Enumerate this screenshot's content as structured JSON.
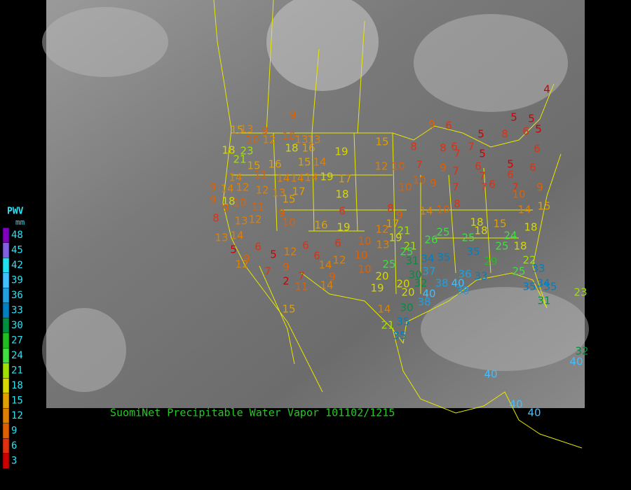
{
  "title": "SuomiNet Precipitable Water Vapor 101102/1215",
  "legend": {
    "title": "PWV",
    "unit": "mm",
    "levels": [
      {
        "value": 48,
        "color": "#8000c0"
      },
      {
        "value": 45,
        "color": "#8060e0"
      },
      {
        "value": 42,
        "color": "#20e0f0"
      },
      {
        "value": 39,
        "color": "#40c0ff"
      },
      {
        "value": 36,
        "color": "#20a0e0"
      },
      {
        "value": 33,
        "color": "#0080c0"
      },
      {
        "value": 30,
        "color": "#009040"
      },
      {
        "value": 27,
        "color": "#20c020"
      },
      {
        "value": 24,
        "color": "#40e040"
      },
      {
        "value": 21,
        "color": "#a0e000"
      },
      {
        "value": 18,
        "color": "#d8d800"
      },
      {
        "value": 15,
        "color": "#e0a000"
      },
      {
        "value": 12,
        "color": "#e08000"
      },
      {
        "value": 9,
        "color": "#e06000"
      },
      {
        "value": 6,
        "color": "#e03010"
      },
      {
        "value": 3,
        "color": "#cc0000"
      }
    ]
  },
  "stations": [
    4,
    5,
    5,
    5,
    6,
    8,
    5,
    6,
    5,
    6,
    6,
    6,
    7,
    10,
    9,
    15,
    14,
    18,
    15,
    18,
    18,
    24,
    25,
    18,
    29,
    22,
    25,
    33,
    35,
    34,
    35,
    31,
    23,
    40,
    32,
    40,
    40,
    40,
    9,
    6,
    8,
    8,
    6,
    7,
    5,
    7,
    6,
    7,
    9,
    7,
    7,
    10,
    12,
    10,
    9,
    10,
    7,
    7,
    8,
    10,
    14,
    8,
    9,
    17,
    21,
    12,
    19,
    25,
    26,
    25,
    21,
    25,
    35,
    34,
    31,
    25,
    10,
    13,
    10,
    10,
    20,
    19,
    20,
    32,
    20,
    40,
    38,
    37,
    30,
    40,
    36,
    33,
    35,
    38,
    38,
    30,
    14,
    21,
    35,
    35,
    15,
    19,
    9,
    15,
    13,
    9,
    10,
    13,
    13,
    10,
    12,
    18,
    23,
    21,
    18,
    16,
    15,
    16,
    15,
    14,
    14,
    11,
    14,
    14,
    14,
    19,
    17,
    9,
    14,
    12,
    12,
    13,
    17,
    18,
    9,
    18,
    10,
    9,
    11,
    15,
    6,
    8,
    13,
    12,
    9,
    10,
    16,
    19,
    13,
    14,
    5,
    6,
    12,
    5,
    6,
    6,
    6,
    14,
    12,
    12,
    9,
    7,
    9,
    2,
    7,
    9,
    11,
    14,
    15
  ]
}
